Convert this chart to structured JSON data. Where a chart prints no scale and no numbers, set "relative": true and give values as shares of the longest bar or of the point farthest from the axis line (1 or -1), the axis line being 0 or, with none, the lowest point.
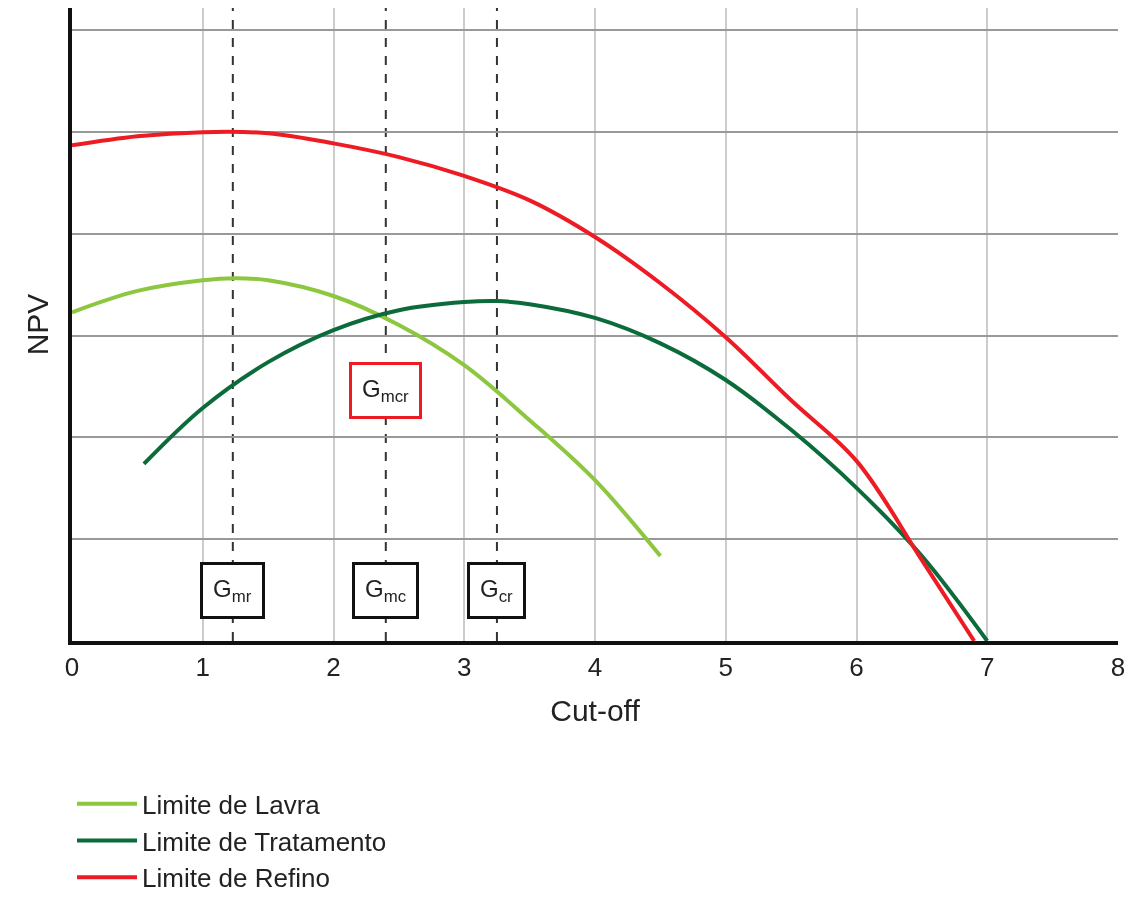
{
  "chart_data": {
    "type": "line",
    "relative": true,
    "xlabel": "Cut-off",
    "ylabel": "NPV",
    "xlim": [
      0,
      8
    ],
    "xticks": [
      0,
      1,
      2,
      3,
      4,
      5,
      6,
      7,
      8
    ],
    "grid": true,
    "legend": "bottom",
    "marker": "none",
    "line_style": "solid",
    "series": [
      {
        "name": "Limite de Lavra",
        "color": "#8dc63f",
        "x": [
          0,
          0.5,
          1,
          1.25,
          1.5,
          2,
          2.5,
          3,
          3.5,
          4,
          4.5
        ],
        "values": [
          0.646,
          0.688,
          0.709,
          0.713,
          0.709,
          0.678,
          0.621,
          0.542,
          0.434,
          0.316,
          0.167
        ]
      },
      {
        "name": "Limite de Tratamento",
        "color": "#0b6b3a",
        "x": [
          0.55,
          1,
          1.5,
          2,
          2.5,
          3,
          3.25,
          3.5,
          4,
          4.5,
          5,
          5.5,
          6,
          6.5,
          7
        ],
        "values": [
          0.348,
          0.458,
          0.548,
          0.611,
          0.65,
          0.666,
          0.668,
          0.662,
          0.635,
          0.585,
          0.513,
          0.415,
          0.301,
          0.167,
          0
        ]
      },
      {
        "name": "Limite de Refino",
        "color": "#ed1c24",
        "x": [
          0,
          0.5,
          1,
          1.5,
          2,
          2.5,
          3,
          3.5,
          4,
          4.5,
          5,
          5.5,
          6,
          6.5,
          6.9
        ],
        "values": [
          0.974,
          0.992,
          1,
          0.998,
          0.978,
          0.951,
          0.914,
          0.866,
          0.794,
          0.703,
          0.597,
          0.473,
          0.354,
          0.159,
          0
        ]
      }
    ],
    "ref_lines": [
      {
        "axis": "x",
        "value": 1.23,
        "label": "G$_{mr}$",
        "color": "#333333",
        "line_style": "dashed"
      },
      {
        "axis": "x",
        "value": 2.4,
        "label": "G$_{mc}$",
        "color": "#333333",
        "line_style": "dashed"
      },
      {
        "axis": "x",
        "value": 3.25,
        "label": "G$_{cr}$",
        "color": "#333333",
        "line_style": "dashed"
      }
    ],
    "annotations": [
      {
        "text": "G$_{mcr}$",
        "x": 2.4,
        "y": 0.493
      }
    ]
  }
}
